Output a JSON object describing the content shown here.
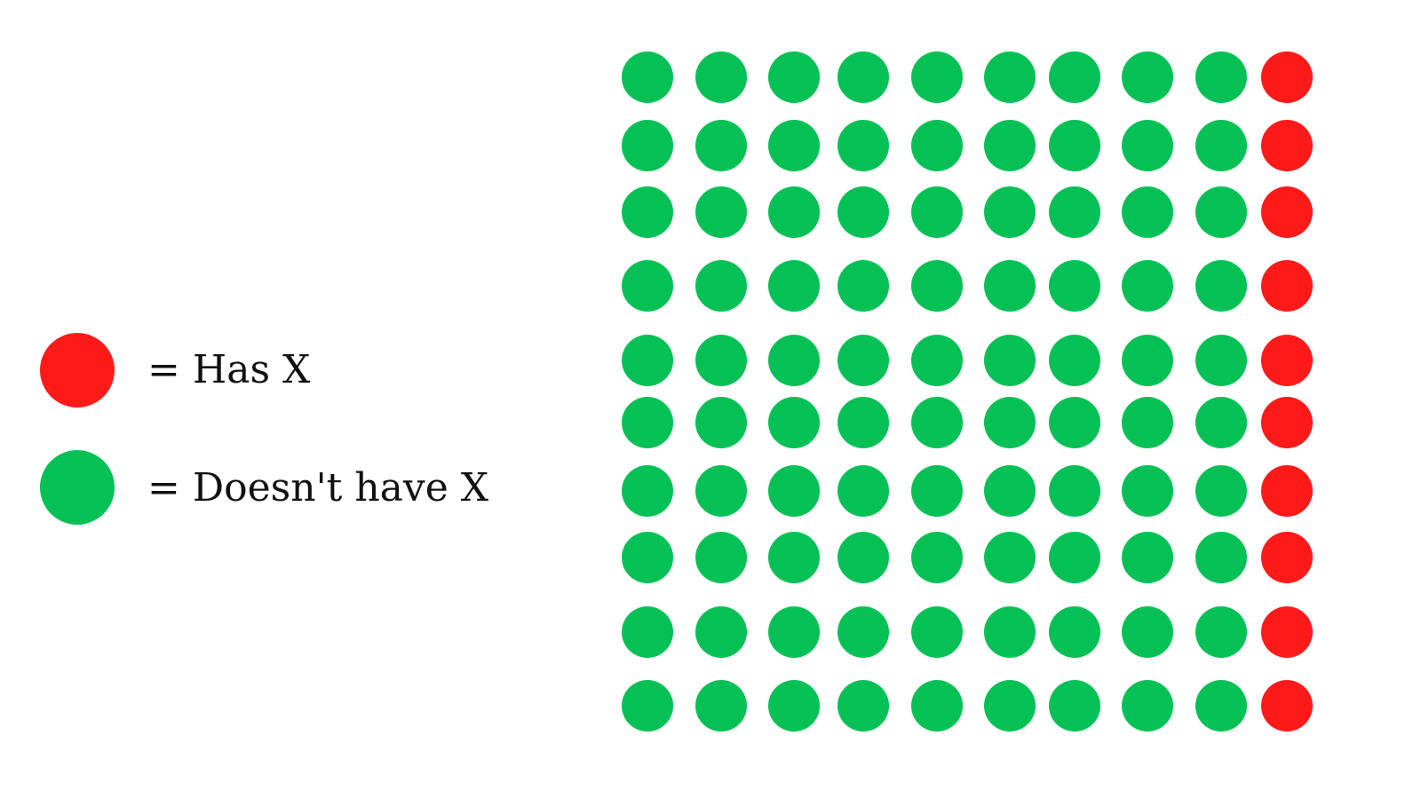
{
  "chart_data": {
    "type": "waffle",
    "rows": 10,
    "cols": 10,
    "total": 100,
    "categories": [
      {
        "label": "= Has X",
        "count": 10,
        "color": "#ff1a1a",
        "placement": "last column"
      },
      {
        "label": "= Doesn't have X",
        "count": 90,
        "color": "#05c155"
      }
    ]
  },
  "legend": {
    "has_x_label": "= Has X",
    "doesnt_have_x_label": "= Doesn't have X"
  },
  "colors": {
    "has_x": "#ff1a1a",
    "doesnt_have_x": "#05c155",
    "background": "#ffffff"
  }
}
